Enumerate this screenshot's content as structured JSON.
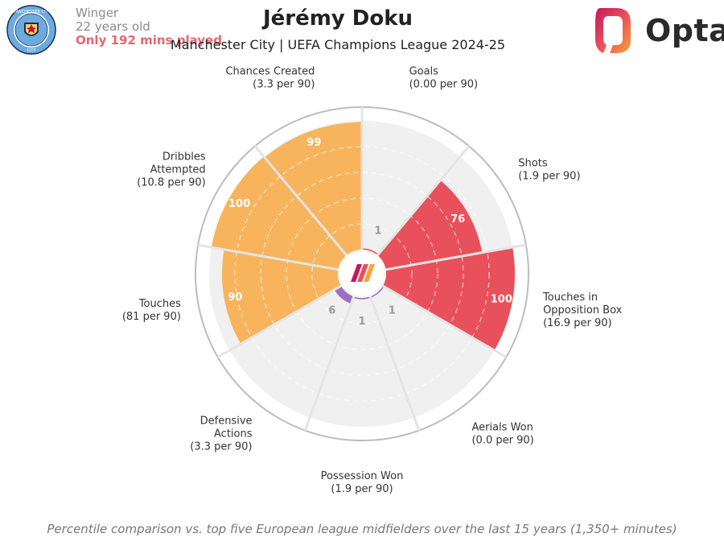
{
  "player": {
    "position": "Winger",
    "age": "22 years old",
    "minutes_note": "Only 192 mins played"
  },
  "header": {
    "title": "Jérémy Doku",
    "subtitle": "Manchester City | UEFA Champions League 2024-25"
  },
  "club": {
    "name": "MANCHESTER CITY",
    "short": "CITY"
  },
  "brand": {
    "name": "Opta"
  },
  "footnote": "Percentile comparison vs. top five European league midfielders over the last 15 years (1,350+ minutes)",
  "colors": {
    "attacking": "#f7b45d",
    "shooting": "#e8505b",
    "defending": "#9b6ec8",
    "background_slice": "#f0f0f0",
    "ring": "#bdbdbd"
  },
  "chart_data": {
    "type": "polar_bar",
    "scale": [
      0,
      100
    ],
    "metrics": [
      {
        "label": "Goals",
        "value_text": "(0.00 per 90)",
        "percentile": 1,
        "group": "shooting"
      },
      {
        "label": "Shots",
        "value_text": "(1.9 per 90)",
        "percentile": 76,
        "group": "shooting"
      },
      {
        "label": "Touches in Opposition Box",
        "value_text": "(16.9 per 90)",
        "percentile": 100,
        "group": "shooting"
      },
      {
        "label": "Aerials Won",
        "value_text": "(0.0 per 90)",
        "percentile": 1,
        "group": "defending"
      },
      {
        "label": "Possession Won",
        "value_text": "(1.9 per 90)",
        "percentile": 1,
        "group": "defending"
      },
      {
        "label": "Defensive Actions",
        "value_text": "(3.3 per 90)",
        "percentile": 6,
        "group": "defending"
      },
      {
        "label": "Touches",
        "value_text": "(81 per 90)",
        "percentile": 90,
        "group": "attacking"
      },
      {
        "label": "Dribbles Attempted",
        "value_text": "(10.8 per 90)",
        "percentile": 100,
        "group": "attacking"
      },
      {
        "label": "Chances Created",
        "value_text": "(3.3 per 90)",
        "percentile": 99,
        "group": "attacking"
      }
    ]
  }
}
